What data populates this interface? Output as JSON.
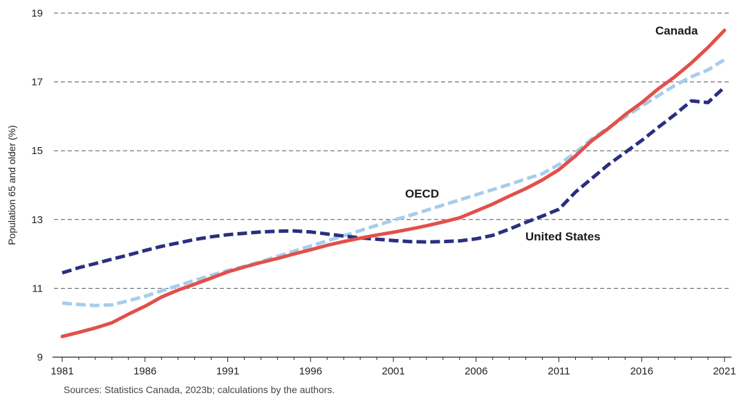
{
  "chart_data": {
    "type": "line",
    "title": "",
    "xlabel": "",
    "ylabel": "Population 65 and older (%)",
    "xlim": [
      1981,
      2021
    ],
    "ylim": [
      9,
      19
    ],
    "x_ticks": [
      1981,
      1986,
      1991,
      1996,
      2001,
      2006,
      2011,
      2016,
      2021
    ],
    "y_ticks": [
      9,
      11,
      13,
      15,
      17,
      19
    ],
    "grid": "horizontal dashed",
    "series": [
      {
        "name": "Canada",
        "color": "#e2504a",
        "style": "solid",
        "points": [
          [
            1981,
            9.6
          ],
          [
            1982,
            9.72
          ],
          [
            1983,
            9.85
          ],
          [
            1984,
            10.0
          ],
          [
            1985,
            10.25
          ],
          [
            1986,
            10.48
          ],
          [
            1987,
            10.75
          ],
          [
            1988,
            10.95
          ],
          [
            1989,
            11.12
          ],
          [
            1990,
            11.3
          ],
          [
            1991,
            11.48
          ],
          [
            1992,
            11.62
          ],
          [
            1993,
            11.75
          ],
          [
            1994,
            11.87
          ],
          [
            1995,
            12.0
          ],
          [
            1996,
            12.12
          ],
          [
            1997,
            12.25
          ],
          [
            1998,
            12.36
          ],
          [
            1999,
            12.46
          ],
          [
            2000,
            12.55
          ],
          [
            2001,
            12.63
          ],
          [
            2002,
            12.72
          ],
          [
            2003,
            12.82
          ],
          [
            2004,
            12.93
          ],
          [
            2005,
            13.05
          ],
          [
            2006,
            13.25
          ],
          [
            2007,
            13.45
          ],
          [
            2008,
            13.68
          ],
          [
            2009,
            13.9
          ],
          [
            2010,
            14.15
          ],
          [
            2011,
            14.45
          ],
          [
            2012,
            14.85
          ],
          [
            2013,
            15.3
          ],
          [
            2014,
            15.65
          ],
          [
            2015,
            16.05
          ],
          [
            2016,
            16.4
          ],
          [
            2017,
            16.8
          ],
          [
            2018,
            17.15
          ],
          [
            2019,
            17.55
          ],
          [
            2020,
            18.0
          ],
          [
            2021,
            18.5
          ]
        ]
      },
      {
        "name": "OECD",
        "color": "#a7cdec",
        "style": "dashed",
        "points": [
          [
            1981,
            10.57
          ],
          [
            1982,
            10.53
          ],
          [
            1983,
            10.5
          ],
          [
            1984,
            10.52
          ],
          [
            1985,
            10.64
          ],
          [
            1986,
            10.77
          ],
          [
            1987,
            10.93
          ],
          [
            1988,
            11.08
          ],
          [
            1989,
            11.23
          ],
          [
            1990,
            11.38
          ],
          [
            1991,
            11.52
          ],
          [
            1992,
            11.64
          ],
          [
            1993,
            11.78
          ],
          [
            1994,
            11.93
          ],
          [
            1995,
            12.08
          ],
          [
            1996,
            12.23
          ],
          [
            1997,
            12.38
          ],
          [
            1998,
            12.53
          ],
          [
            1999,
            12.68
          ],
          [
            2000,
            12.83
          ],
          [
            2001,
            12.98
          ],
          [
            2002,
            13.12
          ],
          [
            2003,
            13.27
          ],
          [
            2004,
            13.42
          ],
          [
            2005,
            13.57
          ],
          [
            2006,
            13.72
          ],
          [
            2007,
            13.87
          ],
          [
            2008,
            14.02
          ],
          [
            2009,
            14.18
          ],
          [
            2010,
            14.33
          ],
          [
            2011,
            14.6
          ],
          [
            2012,
            14.95
          ],
          [
            2013,
            15.35
          ],
          [
            2014,
            15.67
          ],
          [
            2015,
            15.98
          ],
          [
            2016,
            16.3
          ],
          [
            2017,
            16.6
          ],
          [
            2018,
            16.9
          ],
          [
            2019,
            17.15
          ],
          [
            2020,
            17.35
          ],
          [
            2021,
            17.65
          ]
        ]
      },
      {
        "name": "United States",
        "color": "#2a2f80",
        "style": "dashed",
        "points": [
          [
            1981,
            11.45
          ],
          [
            1982,
            11.6
          ],
          [
            1983,
            11.72
          ],
          [
            1984,
            11.85
          ],
          [
            1985,
            11.97
          ],
          [
            1986,
            12.1
          ],
          [
            1987,
            12.22
          ],
          [
            1988,
            12.32
          ],
          [
            1989,
            12.42
          ],
          [
            1990,
            12.5
          ],
          [
            1991,
            12.56
          ],
          [
            1992,
            12.6
          ],
          [
            1993,
            12.64
          ],
          [
            1994,
            12.66
          ],
          [
            1995,
            12.67
          ],
          [
            1996,
            12.64
          ],
          [
            1997,
            12.58
          ],
          [
            1998,
            12.52
          ],
          [
            1999,
            12.47
          ],
          [
            2000,
            12.43
          ],
          [
            2001,
            12.39
          ],
          [
            2002,
            12.36
          ],
          [
            2003,
            12.35
          ],
          [
            2004,
            12.36
          ],
          [
            2005,
            12.38
          ],
          [
            2006,
            12.44
          ],
          [
            2007,
            12.54
          ],
          [
            2008,
            12.72
          ],
          [
            2009,
            12.92
          ],
          [
            2010,
            13.1
          ],
          [
            2011,
            13.3
          ],
          [
            2012,
            13.8
          ],
          [
            2013,
            14.2
          ],
          [
            2014,
            14.6
          ],
          [
            2015,
            14.95
          ],
          [
            2016,
            15.3
          ],
          [
            2017,
            15.68
          ],
          [
            2018,
            16.05
          ],
          [
            2019,
            16.45
          ],
          [
            2020,
            16.4
          ],
          [
            2021,
            16.85
          ]
        ]
      }
    ],
    "annotations": [
      "Canada",
      "OECD",
      "United States"
    ],
    "source": "Sources: Statistics Canada, 2023b; calculations by the authors."
  }
}
